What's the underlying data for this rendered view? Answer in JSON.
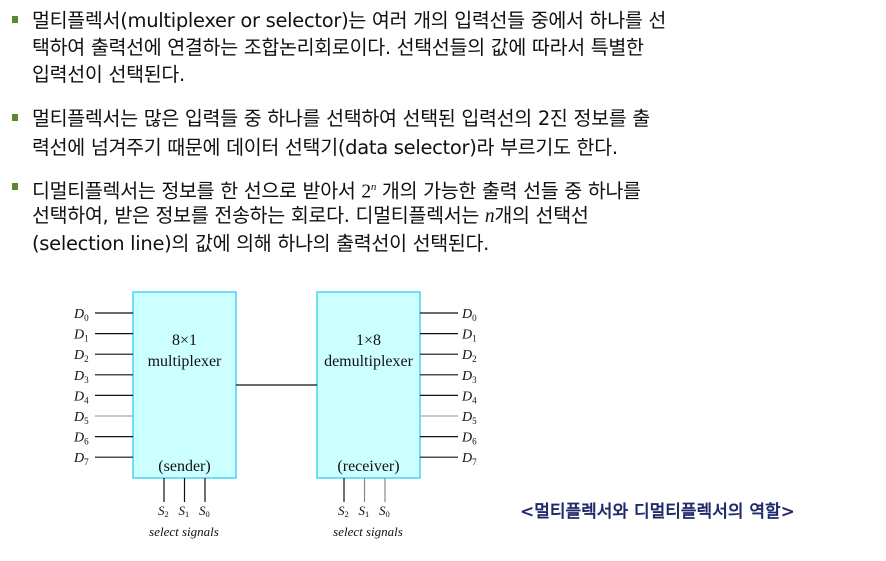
{
  "bullets": [
    {
      "lines": [
        "멀티플렉서(multiplexer or selector)는 여러 개의 입력선들 중에서 하나를 선",
        "택하여 출력선에 연결하는 조합논리회로이다. 선택선들의 값에 따라서 특별한",
        "입력선이 선택된다."
      ]
    },
    {
      "lines": [
        "멀티플렉서는 많은 입력들 중 하나를 선택하여 선택된 입력선의 2진 정보를 출",
        "력선에 넘겨주기 때문에 데이터 선택기(data selector)라 부르기도 한다."
      ]
    },
    {
      "line1_pre": "디멀티플렉서는 정보를 한 선으로 받아서 ",
      "line1_base": "2",
      "line1_sup": "n",
      "line1_post": " 개의 가능한 출력 선들 중 하나를",
      "line2_pre": "선택하여, 받은 정보를 전송하는 회로다. 디멀티플렉서는 ",
      "line2_var": "n",
      "line2_post": "개의 선택선",
      "line3": "(selection line)의 값에 의해 하나의 출력선이 선택된다."
    }
  ],
  "diagram": {
    "box_color": "#ccffff",
    "box_border": "#33ccee",
    "mux": {
      "title": "8×1",
      "subtitle": "multiplexer",
      "role": "(sender)"
    },
    "demux": {
      "title": "1×8",
      "subtitle": "demultiplexer",
      "role": "(receiver)"
    },
    "data_labels": [
      "0",
      "1",
      "2",
      "3",
      "4",
      "5",
      "6",
      "7"
    ],
    "select_labels": [
      "2",
      "1",
      "0"
    ],
    "data_letter": "D",
    "select_letter": "S",
    "select_caption": "select signals"
  },
  "caption": "<멀티플렉서와 디멀티플렉서의 역할>"
}
